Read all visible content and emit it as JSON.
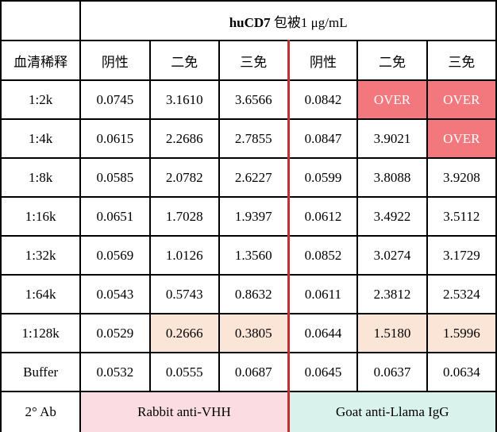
{
  "table": {
    "title": {
      "product": "huCD7",
      "suffix": " 包被1 μg/mL"
    },
    "row_header_label": "血清稀释",
    "group_headers": [
      "阴性",
      "二免",
      "三免",
      "阴性",
      "二免",
      "三免"
    ],
    "rows": [
      {
        "label": "1:2k",
        "values": [
          "0.0745",
          "3.1610",
          "3.6566",
          "0.0842",
          "OVER",
          "OVER"
        ]
      },
      {
        "label": "1:4k",
        "values": [
          "0.0615",
          "2.2686",
          "2.7855",
          "0.0847",
          "3.9021",
          "OVER"
        ]
      },
      {
        "label": "1:8k",
        "values": [
          "0.0585",
          "2.0782",
          "2.6227",
          "0.0599",
          "3.8088",
          "3.9208"
        ]
      },
      {
        "label": "1:16k",
        "values": [
          "0.0651",
          "1.7028",
          "1.9397",
          "0.0612",
          "3.4922",
          "3.5112"
        ]
      },
      {
        "label": "1:32k",
        "values": [
          "0.0569",
          "1.0126",
          "1.3560",
          "0.0852",
          "3.0274",
          "3.1729"
        ]
      },
      {
        "label": "1:64k",
        "values": [
          "0.0543",
          "0.5743",
          "0.8632",
          "0.0611",
          "2.3812",
          "2.5324"
        ]
      },
      {
        "label": "1:128k",
        "values": [
          "0.0529",
          "0.2666",
          "0.3805",
          "0.0644",
          "1.5180",
          "1.5996"
        ]
      },
      {
        "label": "Buffer",
        "values": [
          "0.0532",
          "0.0555",
          "0.0687",
          "0.0645",
          "0.0637",
          "0.0634"
        ]
      }
    ],
    "footer": {
      "label": "2° Ab",
      "left_group": "Rabbit anti-VHH",
      "right_group": "Goat anti-Llama IgG"
    },
    "colors": {
      "over_fill": "#F3787D",
      "over_text": "#FFFFFF",
      "highlight_fill": "#FBE5D6",
      "left_group_fill": "#FBDCE2",
      "right_group_fill": "#D9F2EC",
      "divider_red": "#C22F31",
      "grid": "#000000"
    }
  }
}
